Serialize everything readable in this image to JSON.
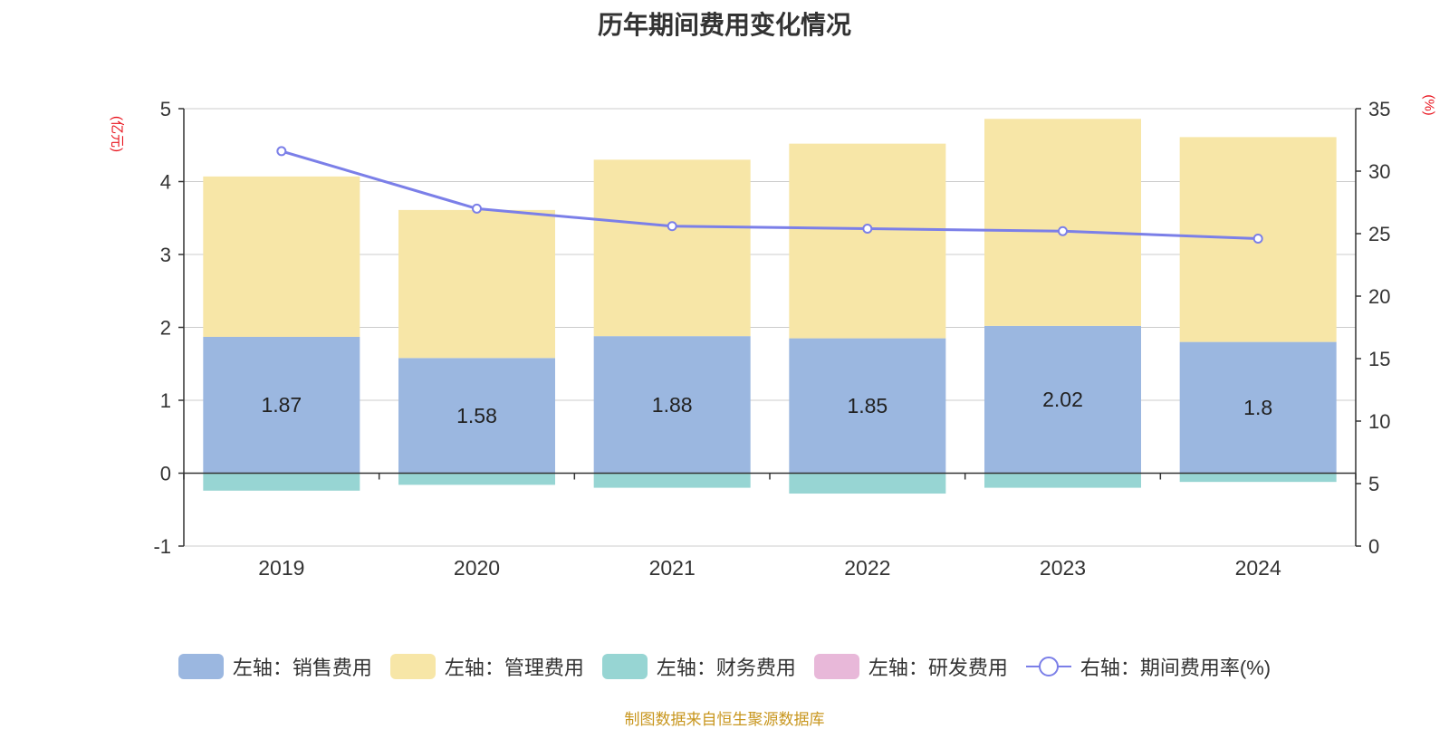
{
  "title": "历年期间费用变化情况",
  "left_unit": "(亿元)",
  "right_unit": "(%)",
  "source": "制图数据来自恒生聚源数据库",
  "colors": {
    "sales": "#9bb7e0",
    "admin": "#f7e6a7",
    "finance": "#97d5d3",
    "rnd": "#e8b8d9",
    "rate": "#7b7fe8"
  },
  "legend": [
    {
      "label": "左轴：销售费用",
      "key": "sales",
      "kind": "bar"
    },
    {
      "label": "左轴：管理费用",
      "key": "admin",
      "kind": "bar"
    },
    {
      "label": "左轴：财务费用",
      "key": "finance",
      "kind": "bar"
    },
    {
      "label": "左轴：研发费用",
      "key": "rnd",
      "kind": "bar"
    },
    {
      "label": "右轴：期间费用率(%)",
      "key": "rate",
      "kind": "line"
    }
  ],
  "chart_data": {
    "type": "bar",
    "title": "历年期间费用变化情况",
    "categories": [
      "2019",
      "2020",
      "2021",
      "2022",
      "2023",
      "2024"
    ],
    "series": [
      {
        "name": "左轴：销售费用",
        "axis": "left",
        "values": [
          1.87,
          1.58,
          1.88,
          1.85,
          2.02,
          1.8
        ],
        "data_labels": [
          "1.87",
          "1.58",
          "1.88",
          "1.85",
          "2.02",
          "1.8"
        ]
      },
      {
        "name": "左轴：管理费用",
        "axis": "left",
        "values": [
          2.2,
          2.03,
          2.42,
          2.67,
          2.84,
          2.81
        ]
      },
      {
        "name": "左轴：财务费用",
        "axis": "left",
        "values": [
          -0.24,
          -0.16,
          -0.2,
          -0.28,
          -0.2,
          -0.12
        ]
      },
      {
        "name": "左轴：研发费用",
        "axis": "left",
        "values": [
          0,
          0,
          0,
          0,
          0,
          0
        ]
      },
      {
        "name": "右轴：期间费用率(%)",
        "axis": "right",
        "type": "line",
        "values": [
          31.6,
          27.0,
          25.6,
          25.4,
          25.2,
          24.6
        ]
      }
    ],
    "y_left": {
      "label": "(亿元)",
      "ylim": [
        -1,
        5
      ],
      "ticks": [
        "5",
        "4",
        "3",
        "2",
        "1",
        "0",
        "-1"
      ]
    },
    "y_right": {
      "label": "(%)",
      "ylim": [
        0,
        35
      ],
      "ticks": [
        "35",
        "30",
        "25",
        "20",
        "15",
        "10",
        "5",
        "0"
      ]
    },
    "grid": true,
    "legend_position": "bottom"
  }
}
